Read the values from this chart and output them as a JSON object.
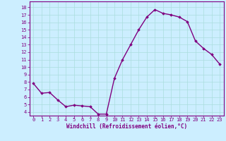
{
  "x": [
    0,
    1,
    2,
    3,
    4,
    5,
    6,
    7,
    8,
    9,
    10,
    11,
    12,
    13,
    14,
    15,
    16,
    17,
    18,
    19,
    20,
    21,
    22,
    23
  ],
  "y": [
    7.8,
    6.5,
    6.6,
    5.6,
    4.7,
    4.9,
    4.8,
    4.7,
    3.7,
    3.7,
    8.5,
    11.0,
    13.0,
    15.0,
    16.7,
    17.7,
    17.2,
    17.0,
    16.7,
    16.1,
    13.5,
    12.5,
    11.7,
    10.4
  ],
  "line_color": "#800080",
  "marker": "D",
  "marker_size": 1.8,
  "bg_color": "#cceeff",
  "grid_color": "#aadddd",
  "ylabel_ticks": [
    4,
    5,
    6,
    7,
    8,
    9,
    10,
    11,
    12,
    13,
    14,
    15,
    16,
    17,
    18
  ],
  "xlabel": "Windchill (Refroidissement éolien,°C)",
  "xlabel_color": "#800080",
  "tick_color": "#800080",
  "ylim": [
    3.5,
    18.8
  ],
  "xlim": [
    -0.5,
    23.5
  ],
  "linewidth": 1.0,
  "tick_fontsize": 5.0,
  "xlabel_fontsize": 5.5
}
